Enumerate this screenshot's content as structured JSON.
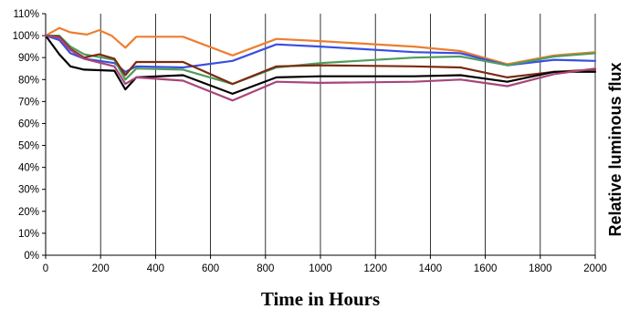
{
  "chart_data": {
    "type": "line",
    "title": "",
    "xlabel": "Time in Hours",
    "ylabel": "Relative luminous flux",
    "xlim": [
      0,
      2000
    ],
    "ylim": [
      0,
      110
    ],
    "x_ticks": [
      0,
      200,
      400,
      600,
      800,
      1000,
      1200,
      1400,
      1600,
      1800,
      2000
    ],
    "x_tick_labels": [
      "0",
      "200",
      "400",
      "600",
      "800",
      "1000",
      "1200",
      "1400",
      "1600",
      "1800",
      "2000"
    ],
    "y_ticks": [
      0,
      10,
      20,
      30,
      40,
      50,
      60,
      70,
      80,
      90,
      100,
      110
    ],
    "y_tick_labels": [
      "0%",
      "10%",
      "20%",
      "30%",
      "40%",
      "50%",
      "60%",
      "70%",
      "80%",
      "90%",
      "100%",
      "110%"
    ],
    "grid": "vertical",
    "legend": "none",
    "series": [
      {
        "color": "#ed7d31",
        "points": [
          [
            0,
            100
          ],
          [
            50,
            103.5
          ],
          [
            90,
            101.5
          ],
          [
            150,
            100.5
          ],
          [
            195,
            102.5
          ],
          [
            240,
            100
          ],
          [
            290,
            94.5
          ],
          [
            330,
            99.5
          ],
          [
            500,
            99.5
          ],
          [
            680,
            91
          ],
          [
            840,
            98.5
          ],
          [
            1000,
            97.5
          ],
          [
            1340,
            95
          ],
          [
            1510,
            93
          ],
          [
            1680,
            87
          ],
          [
            1850,
            91
          ],
          [
            2000,
            92.5
          ]
        ]
      },
      {
        "color": "#3a4fe0",
        "points": [
          [
            0,
            100
          ],
          [
            50,
            98
          ],
          [
            90,
            92
          ],
          [
            140,
            89.5
          ],
          [
            250,
            87.5
          ],
          [
            290,
            83.5
          ],
          [
            330,
            86
          ],
          [
            500,
            85.5
          ],
          [
            680,
            88.5
          ],
          [
            840,
            96
          ],
          [
            1000,
            95
          ],
          [
            1340,
            92.5
          ],
          [
            1510,
            92
          ],
          [
            1680,
            86.5
          ],
          [
            1850,
            89
          ],
          [
            2000,
            88.5
          ]
        ]
      },
      {
        "color": "#4e9c5c",
        "points": [
          [
            0,
            100
          ],
          [
            50,
            100
          ],
          [
            90,
            95
          ],
          [
            140,
            91.5
          ],
          [
            250,
            89
          ],
          [
            290,
            80
          ],
          [
            330,
            85
          ],
          [
            500,
            84.5
          ],
          [
            680,
            78
          ],
          [
            840,
            85.5
          ],
          [
            1000,
            87.5
          ],
          [
            1340,
            90
          ],
          [
            1510,
            90.5
          ],
          [
            1680,
            86.5
          ],
          [
            1850,
            90.5
          ],
          [
            2000,
            92
          ]
        ]
      },
      {
        "color": "#7b2b0e",
        "points": [
          [
            0,
            100
          ],
          [
            50,
            99.5
          ],
          [
            90,
            94
          ],
          [
            140,
            90
          ],
          [
            195,
            91.5
          ],
          [
            250,
            89.5
          ],
          [
            290,
            82
          ],
          [
            330,
            88
          ],
          [
            500,
            88
          ],
          [
            680,
            78
          ],
          [
            840,
            86
          ],
          [
            1000,
            86.5
          ],
          [
            1340,
            86
          ],
          [
            1510,
            85.5
          ],
          [
            1680,
            81
          ],
          [
            1850,
            83.5
          ],
          [
            2000,
            84.5
          ]
        ]
      },
      {
        "color": "#000000",
        "points": [
          [
            0,
            100
          ],
          [
            50,
            91.5
          ],
          [
            90,
            86
          ],
          [
            140,
            84.5
          ],
          [
            250,
            84
          ],
          [
            290,
            75.5
          ],
          [
            330,
            81
          ],
          [
            500,
            82
          ],
          [
            680,
            73.5
          ],
          [
            840,
            81
          ],
          [
            1000,
            81.5
          ],
          [
            1340,
            81.5
          ],
          [
            1510,
            82
          ],
          [
            1680,
            79
          ],
          [
            1850,
            83.5
          ],
          [
            2000,
            83.5
          ]
        ]
      },
      {
        "color": "#a8457a",
        "points": [
          [
            0,
            100
          ],
          [
            50,
            99
          ],
          [
            90,
            93.5
          ],
          [
            140,
            89.5
          ],
          [
            250,
            86
          ],
          [
            290,
            78
          ],
          [
            330,
            81
          ],
          [
            500,
            79.5
          ],
          [
            680,
            70.5
          ],
          [
            840,
            79
          ],
          [
            1000,
            78.5
          ],
          [
            1340,
            79
          ],
          [
            1510,
            80
          ],
          [
            1680,
            77
          ],
          [
            1850,
            82.5
          ],
          [
            2000,
            85
          ]
        ]
      }
    ]
  }
}
